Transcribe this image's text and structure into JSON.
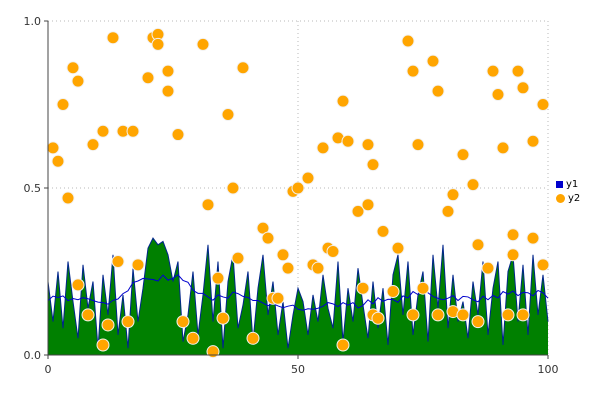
{
  "chart_data": {
    "type": "mixed",
    "title": "",
    "xlabel": "",
    "ylabel": "",
    "xlim": [
      0,
      100
    ],
    "ylim": [
      0.0,
      1.0
    ],
    "x_ticks": [
      0,
      50,
      100
    ],
    "x_tick_labels": [
      "0",
      "50",
      "100"
    ],
    "y_ticks": [
      0.0,
      0.5,
      1.0
    ],
    "y_tick_labels": [
      "0.0",
      "0.5",
      "1.0"
    ],
    "grid": "dotted",
    "legend_position": "right-outside",
    "series": [
      {
        "name": "y1",
        "type": "area",
        "fill_color": "#008000",
        "line_color": "#0000cd",
        "smooth_overlay": true,
        "x_step": 1,
        "values": [
          0.22,
          0.1,
          0.25,
          0.08,
          0.28,
          0.16,
          0.05,
          0.27,
          0.14,
          0.22,
          0.02,
          0.24,
          0.12,
          0.3,
          0.06,
          0.18,
          0.02,
          0.26,
          0.1,
          0.2,
          0.32,
          0.35,
          0.33,
          0.34,
          0.3,
          0.22,
          0.28,
          0.04,
          0.12,
          0.25,
          0.06,
          0.18,
          0.33,
          0.1,
          0.28,
          0.02,
          0.22,
          0.3,
          0.08,
          0.15,
          0.25,
          0.04,
          0.2,
          0.3,
          0.12,
          0.22,
          0.06,
          0.16,
          0.02,
          0.12,
          0.2,
          0.16,
          0.06,
          0.18,
          0.1,
          0.24,
          0.14,
          0.08,
          0.28,
          0.04,
          0.2,
          0.1,
          0.26,
          0.15,
          0.05,
          0.22,
          0.08,
          0.2,
          0.03,
          0.24,
          0.3,
          0.12,
          0.28,
          0.06,
          0.18,
          0.25,
          0.04,
          0.3,
          0.14,
          0.33,
          0.08,
          0.24,
          0.1,
          0.16,
          0.05,
          0.22,
          0.12,
          0.28,
          0.06,
          0.2,
          0.28,
          0.03,
          0.25,
          0.3,
          0.1,
          0.27,
          0.06,
          0.3,
          0.12,
          0.24,
          0.1
        ]
      },
      {
        "name": "y2",
        "type": "scatter",
        "color": "#ffa500",
        "marker_edge": "#f2f2f2",
        "marker_radius": 6,
        "points": [
          [
            1,
            0.62
          ],
          [
            2,
            0.58
          ],
          [
            3,
            0.75
          ],
          [
            4,
            0.47
          ],
          [
            5,
            0.86
          ],
          [
            6,
            0.82
          ],
          [
            6,
            0.21
          ],
          [
            8,
            0.12
          ],
          [
            9,
            0.63
          ],
          [
            11,
            0.67
          ],
          [
            11,
            0.03
          ],
          [
            12,
            0.09
          ],
          [
            13,
            0.95
          ],
          [
            14,
            0.28
          ],
          [
            15,
            0.67
          ],
          [
            16,
            0.1
          ],
          [
            17,
            0.67
          ],
          [
            18,
            0.27
          ],
          [
            20,
            0.83
          ],
          [
            21,
            0.95
          ],
          [
            22,
            0.96
          ],
          [
            22,
            0.93
          ],
          [
            24,
            0.85
          ],
          [
            24,
            0.79
          ],
          [
            26,
            0.66
          ],
          [
            27,
            0.1
          ],
          [
            29,
            0.05
          ],
          [
            31,
            0.93
          ],
          [
            32,
            0.45
          ],
          [
            33,
            0.01
          ],
          [
            34,
            0.23
          ],
          [
            35,
            0.11
          ],
          [
            36,
            0.72
          ],
          [
            37,
            0.5
          ],
          [
            38,
            0.29
          ],
          [
            39,
            0.86
          ],
          [
            41,
            0.05
          ],
          [
            43,
            0.38
          ],
          [
            44,
            0.35
          ],
          [
            45,
            0.17
          ],
          [
            46,
            0.17
          ],
          [
            47,
            0.3
          ],
          [
            48,
            0.26
          ],
          [
            49,
            0.49
          ],
          [
            50,
            0.5
          ],
          [
            52,
            0.53
          ],
          [
            53,
            0.27
          ],
          [
            54,
            0.26
          ],
          [
            55,
            0.62
          ],
          [
            56,
            0.32
          ],
          [
            57,
            0.31
          ],
          [
            58,
            0.65
          ],
          [
            59,
            0.76
          ],
          [
            59,
            0.03
          ],
          [
            60,
            0.64
          ],
          [
            62,
            0.43
          ],
          [
            63,
            0.2
          ],
          [
            64,
            0.63
          ],
          [
            64,
            0.45
          ],
          [
            65,
            0.57
          ],
          [
            65,
            0.12
          ],
          [
            66,
            0.11
          ],
          [
            67,
            0.37
          ],
          [
            69,
            0.19
          ],
          [
            70,
            0.32
          ],
          [
            72,
            0.94
          ],
          [
            73,
            0.85
          ],
          [
            73,
            0.12
          ],
          [
            74,
            0.63
          ],
          [
            75,
            0.2
          ],
          [
            77,
            0.88
          ],
          [
            78,
            0.79
          ],
          [
            78,
            0.12
          ],
          [
            80,
            0.43
          ],
          [
            81,
            0.48
          ],
          [
            81,
            0.13
          ],
          [
            83,
            0.6
          ],
          [
            83,
            0.12
          ],
          [
            85,
            0.51
          ],
          [
            86,
            0.33
          ],
          [
            86,
            0.1
          ],
          [
            88,
            0.26
          ],
          [
            89,
            0.85
          ],
          [
            90,
            0.78
          ],
          [
            91,
            0.62
          ],
          [
            92,
            0.12
          ],
          [
            93,
            0.36
          ],
          [
            93,
            0.3
          ],
          [
            94,
            0.85
          ],
          [
            95,
            0.8
          ],
          [
            95,
            0.12
          ],
          [
            97,
            0.64
          ],
          [
            97,
            0.35
          ],
          [
            99,
            0.75
          ],
          [
            99,
            0.27
          ]
        ]
      }
    ]
  },
  "legend": {
    "items": [
      {
        "label": "y1",
        "color": "#0000cd",
        "marker": "square"
      },
      {
        "label": "y2",
        "color": "#ffa500",
        "marker": "circle"
      }
    ]
  },
  "colors": {
    "background": "#ffffff",
    "grid": "#b8b8b8",
    "axis": "#444444",
    "tick_text": "#333333"
  }
}
